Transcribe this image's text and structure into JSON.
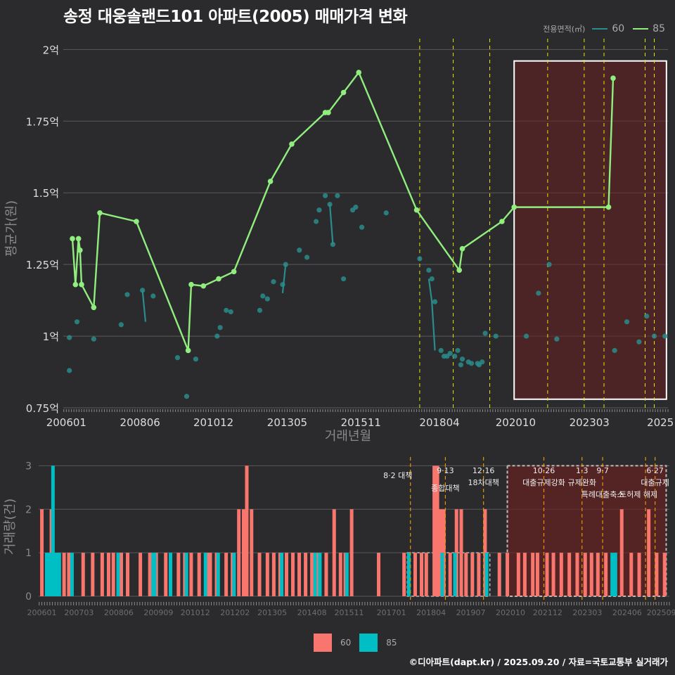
{
  "title": "송정 대웅솔랜드101 아파트(2005) 매매가격 변화",
  "legend": {
    "label": "전용면적(㎡)",
    "items": [
      {
        "name": "60",
        "color": "#2a8c8c"
      },
      {
        "name": "85",
        "color": "#90ee7e"
      }
    ]
  },
  "footer": "©디아파트(dapt.kr) / 2025.09.20 / 자료=국토교통부 실거래가",
  "bottom_legend": [
    {
      "name": "60",
      "color": "#f8766d"
    },
    {
      "name": "85",
      "color": "#00bfc4"
    }
  ],
  "chart_data": [
    {
      "type": "line",
      "xlabel": "거래년월",
      "ylabel": "평균가(원)",
      "xlim": [
        2005.9,
        2025.75
      ],
      "ylim": [
        0.75,
        2.05
      ],
      "x_ticks": [
        {
          "value": 2006.0,
          "label": "200601"
        },
        {
          "value": 2008.42,
          "label": "200806"
        },
        {
          "value": 2010.83,
          "label": "201012"
        },
        {
          "value": 2013.25,
          "label": "201305"
        },
        {
          "value": 2015.67,
          "label": "201511"
        },
        {
          "value": 2018.25,
          "label": "201804"
        },
        {
          "value": 2020.75,
          "label": "202010"
        },
        {
          "value": 2023.17,
          "label": "202303"
        },
        {
          "value": 2025.5,
          "label": "2025"
        }
      ],
      "y_ticks": [
        {
          "value": 0.75,
          "label": "0.75억"
        },
        {
          "value": 1.0,
          "label": "1억"
        },
        {
          "value": 1.25,
          "label": "1.25억"
        },
        {
          "value": 1.5,
          "label": "1.5억"
        },
        {
          "value": 1.75,
          "label": "1.75억"
        },
        {
          "value": 2.0,
          "label": "2억"
        }
      ],
      "policy_lines": [
        2017.6,
        2018.7,
        2019.9,
        2021.8,
        2023.0,
        2023.65,
        2025.0,
        2025.3
      ],
      "highlight_range": [
        2020.7,
        2025.7
      ],
      "highlight_ylim": [
        0.78,
        1.96
      ],
      "series": [
        {
          "name": "85",
          "x": [
            2006.2,
            2006.3,
            2006.4,
            2006.45,
            2006.5,
            2006.9,
            2007.1,
            2008.3,
            2010.0,
            2010.1,
            2010.5,
            2011.0,
            2011.5,
            2012.7,
            2013.4,
            2014.5,
            2014.6,
            2015.1,
            2015.6,
            2017.5,
            2018.9,
            2019.0,
            2020.3,
            2020.7,
            2023.8,
            2023.95
          ],
          "values": [
            1.34,
            1.18,
            1.34,
            1.3,
            1.18,
            1.1,
            1.43,
            1.4,
            0.95,
            1.18,
            1.175,
            1.2,
            1.225,
            1.54,
            1.67,
            1.78,
            1.78,
            1.85,
            1.92,
            1.44,
            1.23,
            1.305,
            1.4,
            1.45,
            1.45,
            1.9
          ]
        },
        {
          "name": "60",
          "scatter_x": [
            2006.1,
            2006.1,
            2006.35,
            2006.9,
            2007.8,
            2008.0,
            2008.5,
            2008.85,
            2009.65,
            2009.95,
            2010.25,
            2010.95,
            2011.05,
            2011.25,
            2011.4,
            2012.35,
            2012.45,
            2012.6,
            2012.8,
            2013.1,
            2013.2,
            2013.65,
            2013.9,
            2014.2,
            2014.3,
            2014.5,
            2014.65,
            2014.75,
            2014.9,
            2015.1,
            2015.4,
            2015.5,
            2015.7,
            2016.5,
            2017.6,
            2017.9,
            2018.0,
            2018.1,
            2018.3,
            2018.4,
            2018.5,
            2018.6,
            2018.75,
            2018.85,
            2018.95,
            2019.0,
            2019.2,
            2019.3,
            2019.5,
            2019.55,
            2019.65,
            2019.75,
            2020.1,
            2021.1,
            2021.5,
            2021.85,
            2022.1,
            2024.0,
            2024.4,
            2024.8,
            2025.05,
            2025.3,
            2025.65
          ],
          "scatter_values": [
            0.88,
            0.995,
            1.05,
            0.99,
            1.04,
            1.145,
            1.16,
            1.14,
            0.925,
            0.79,
            0.92,
            1.0,
            1.03,
            1.09,
            1.085,
            1.09,
            1.14,
            1.13,
            1.19,
            1.18,
            1.25,
            1.3,
            1.275,
            1.4,
            1.44,
            1.49,
            1.46,
            1.32,
            1.49,
            1.2,
            1.44,
            1.45,
            1.38,
            1.43,
            1.27,
            1.23,
            1.2,
            1.12,
            0.95,
            0.93,
            0.93,
            0.94,
            0.93,
            0.95,
            0.9,
            0.92,
            0.91,
            0.905,
            0.905,
            0.9,
            0.91,
            1.01,
            1.0,
            1.0,
            1.15,
            1.25,
            0.99,
            0.95,
            1.05,
            0.98,
            1.07,
            1.0,
            1.0
          ],
          "lines": [
            {
              "x": [
                2008.5,
                2008.6
              ],
              "values": [
                1.16,
                1.05
              ]
            },
            {
              "x": [
                2013.1,
                2013.2
              ],
              "values": [
                1.15,
                1.25
              ]
            },
            {
              "x": [
                2014.65,
                2014.75
              ],
              "values": [
                1.46,
                1.32
              ]
            },
            {
              "x": [
                2017.9,
                2018.0,
                2018.1
              ],
              "values": [
                1.2,
                1.12,
                0.95
              ]
            }
          ]
        }
      ]
    },
    {
      "type": "bar",
      "xlabel": "",
      "ylabel": "거래량(건)",
      "xlim": [
        2005.9,
        2025.75
      ],
      "ylim": [
        0,
        3.2
      ],
      "y_ticks": [
        0,
        1,
        2,
        3
      ],
      "x_ticks": [
        {
          "value": 2006.0,
          "label": "200601"
        },
        {
          "value": 2007.17,
          "label": "200703"
        },
        {
          "value": 2008.42,
          "label": "200806"
        },
        {
          "value": 2009.67,
          "label": "200909"
        },
        {
          "value": 2010.83,
          "label": "201012"
        },
        {
          "value": 2012.08,
          "label": "201202"
        },
        {
          "value": 2013.25,
          "label": "201305"
        },
        {
          "value": 2014.5,
          "label": "201408"
        },
        {
          "value": 2015.67,
          "label": "201511"
        },
        {
          "value": 2017.0,
          "label": "201701"
        },
        {
          "value": 2018.25,
          "label": "201804"
        },
        {
          "value": 2019.5,
          "label": "201907"
        },
        {
          "value": 2020.75,
          "label": "202010"
        },
        {
          "value": 2021.92,
          "label": "202112"
        },
        {
          "value": 2023.17,
          "label": "202303"
        },
        {
          "value": 2024.42,
          "label": "202406"
        },
        {
          "value": 2025.5,
          "label": "202509"
        }
      ],
      "highlight_range": [
        2020.65,
        2025.65
      ],
      "policy_lines": [
        2017.6,
        2018.7,
        2019.9,
        2021.8,
        2023.0,
        2023.65,
        2025.0,
        2025.3
      ],
      "annotations": [
        {
          "x": 2017.6,
          "date": "8·2 대책",
          "label": ""
        },
        {
          "x": 2018.7,
          "date": "9·13",
          "label": "종합대책"
        },
        {
          "x": 2019.9,
          "date": "12·16",
          "label": "18차대책"
        },
        {
          "x": 2021.8,
          "date": "10·26",
          "label": "대출규제강화"
        },
        {
          "x": 2023.0,
          "date": "1·3",
          "label": "규제완화"
        },
        {
          "x": 2023.65,
          "date": "9·7",
          "label": "특례대출축소"
        },
        {
          "x": 2025.0,
          "date": "",
          "label": "토허제 해제"
        },
        {
          "x": 2025.3,
          "date": "6·27",
          "label": "대출규제"
        }
      ],
      "series": [
        {
          "name": "60",
          "x": [
            2006.0,
            2006.3,
            2006.7,
            2006.85,
            2007.3,
            2007.6,
            2007.9,
            2008.1,
            2008.25,
            2008.5,
            2008.7,
            2009.1,
            2009.4,
            2009.6,
            2009.9,
            2010.3,
            2010.5,
            2010.7,
            2010.95,
            2011.2,
            2011.3,
            2011.5,
            2011.8,
            2012.0,
            2012.2,
            2012.35,
            2012.45,
            2012.6,
            2012.85,
            2013.1,
            2013.3,
            2013.5,
            2013.7,
            2013.9,
            2014.1,
            2014.3,
            2014.5,
            2014.7,
            2014.95,
            2015.2,
            2015.4,
            2015.55,
            2015.75,
            2016.6,
            2017.4,
            2017.75,
            2017.95,
            2018.1,
            2018.35,
            2018.45,
            2018.55,
            2018.65,
            2018.85,
            2019.05,
            2019.2,
            2019.35,
            2019.55,
            2019.75,
            2019.95,
            2020.4,
            2020.65,
            2021.0,
            2021.2,
            2021.45,
            2021.6,
            2021.9,
            2022.1,
            2022.35,
            2022.6,
            2022.85,
            2023.1,
            2023.3,
            2023.5,
            2023.75,
            2024.05,
            2024.25,
            2024.55,
            2024.8,
            2025.1,
            2025.35,
            2025.6
          ],
          "values": [
            2,
            2,
            1,
            1,
            1,
            1,
            1,
            1,
            1,
            1,
            1,
            1,
            1,
            1,
            1,
            1,
            1,
            1,
            1,
            1,
            1,
            1,
            1,
            1,
            2,
            2,
            3,
            2,
            1,
            1,
            1,
            1,
            1,
            1,
            1,
            1,
            1,
            1,
            1,
            2,
            1,
            1,
            2,
            1,
            1,
            1,
            1,
            1,
            3,
            3,
            2,
            2,
            1,
            2,
            2,
            1,
            1,
            1,
            2,
            1,
            1,
            1,
            1,
            1,
            1,
            1,
            1,
            1,
            1,
            1,
            1,
            1,
            1,
            1,
            1,
            2,
            1,
            1,
            2,
            1,
            1
          ]
        },
        {
          "name": "85",
          "x": [
            2006.15,
            2006.25,
            2006.35,
            2006.45,
            2006.55,
            2006.95,
            2008.4,
            2009.5,
            2009.55,
            2010.05,
            2010.55,
            2011.15,
            2011.55,
            2012.05,
            2013.55,
            2014.6,
            2014.75,
            2015.6,
            2017.55,
            2018.6,
            2019.0,
            2020.0,
            2023.95,
            2024.05
          ],
          "values": [
            1,
            1,
            3,
            1,
            1,
            1,
            1,
            1,
            1,
            1,
            1,
            1,
            1,
            1,
            1,
            1,
            1,
            1,
            1,
            1,
            1,
            1,
            1,
            1
          ]
        }
      ]
    }
  ]
}
